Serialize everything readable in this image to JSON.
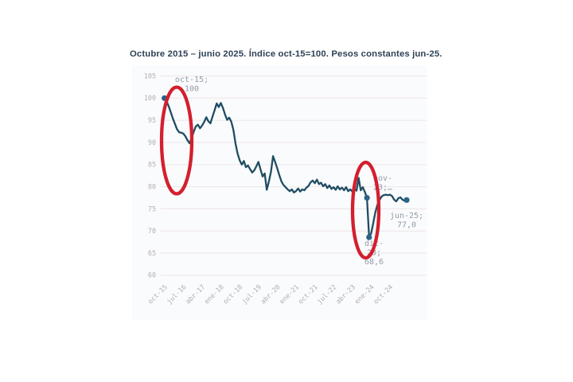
{
  "title": {
    "text": "Octubre 2015 – junio 2025. Índice oct-15=100. Pesos constantes jun-25."
  },
  "colors": {
    "line": "#1f4d63",
    "dot": "#2a6386",
    "red_ellipse": "#d41f2e",
    "grid": "#efe7ea",
    "axis_text": "#b3aeb3",
    "annotation_text": "#929ca6",
    "title_text": "#2d4156",
    "panel_bg": "#fafbfd"
  },
  "chart_data": {
    "type": "line",
    "title": "Octubre 2015 – junio 2025. Índice oct-15=100. Pesos constantes jun-25.",
    "x_unit": "month",
    "x_start": "oct-15",
    "x_end": "jun-25",
    "x_tick_labels": [
      "oct-15",
      "jul-16",
      "abr-17",
      "ene-18",
      "oct-18",
      "jul-19",
      "abr-20",
      "ene-21",
      "oct-21",
      "jul-22",
      "abr-23",
      "ene-24",
      "oct-24"
    ],
    "x_tick_month_interval": 9,
    "ylim": [
      60,
      105
    ],
    "y_ticks": [
      105,
      100,
      95,
      90,
      85,
      80,
      75,
      70,
      65,
      60
    ],
    "grid": "horizontal",
    "legend": "none",
    "series": [
      {
        "name": "Índice (oct-15=100)",
        "values": [
          100,
          99.3,
          98.2,
          96.8,
          95.4,
          94.2,
          93.0,
          92.3,
          92.2,
          92.0,
          91.4,
          90.5,
          89.8,
          91.0,
          92.4,
          93.6,
          94.0,
          93.2,
          93.8,
          94.6,
          95.7,
          94.8,
          94.3,
          95.8,
          97.3,
          98.8,
          98.0,
          98.9,
          97.8,
          96.3,
          95.1,
          95.6,
          94.7,
          92.8,
          89.8,
          87.5,
          86.0,
          85.0,
          85.8,
          84.4,
          84.8,
          84.0,
          83.2,
          83.7,
          84.6,
          85.6,
          83.9,
          82.3,
          83.0,
          79.3,
          81.2,
          83.4,
          86.9,
          85.6,
          84.2,
          82.6,
          81.2,
          80.4,
          79.9,
          79.4,
          79.0,
          79.4,
          78.7,
          79.0,
          79.6,
          78.9,
          79.4,
          79.2,
          79.8,
          80.2,
          81.0,
          81.4,
          80.8,
          81.6,
          80.6,
          80.9,
          80.1,
          80.6,
          79.7,
          80.3,
          79.5,
          79.9,
          79.3,
          80.1,
          79.4,
          79.8,
          79.2,
          79.9,
          79.0,
          79.4,
          78.9,
          79.6,
          79.1,
          82.0,
          79.2,
          79.9,
          78.8,
          77.5,
          68.6,
          69.5,
          71.8,
          74.2,
          75.9,
          77.0,
          77.8,
          78.1,
          78.2,
          78.1,
          78.2,
          77.9,
          77.1,
          76.7,
          77.4,
          77.6,
          77.1,
          76.8,
          77.0
        ]
      }
    ],
    "highlight_points": [
      {
        "id": "oct-15",
        "month_index": 0,
        "value": 100,
        "label_lines": [
          "oct-15;",
          "100"
        ]
      },
      {
        "id": "nov-23",
        "month_index": 97,
        "value": 77.5,
        "label_lines": [
          "nov-",
          "23;…"
        ]
      },
      {
        "id": "dic-23",
        "month_index": 98,
        "value": 68.6,
        "label_lines": [
          "dic-",
          "23;",
          "68,6"
        ]
      },
      {
        "id": "jun-25",
        "month_index": 116,
        "value": 77.0,
        "label_lines": [
          "jun-25;",
          "77,0"
        ]
      }
    ],
    "red_highlight_ellipses": [
      {
        "id": "drop-2016",
        "highlights": "caída oct-15 a oct-16"
      },
      {
        "id": "drop-2023",
        "highlights": "caída nov-23 a dic-23"
      }
    ]
  }
}
